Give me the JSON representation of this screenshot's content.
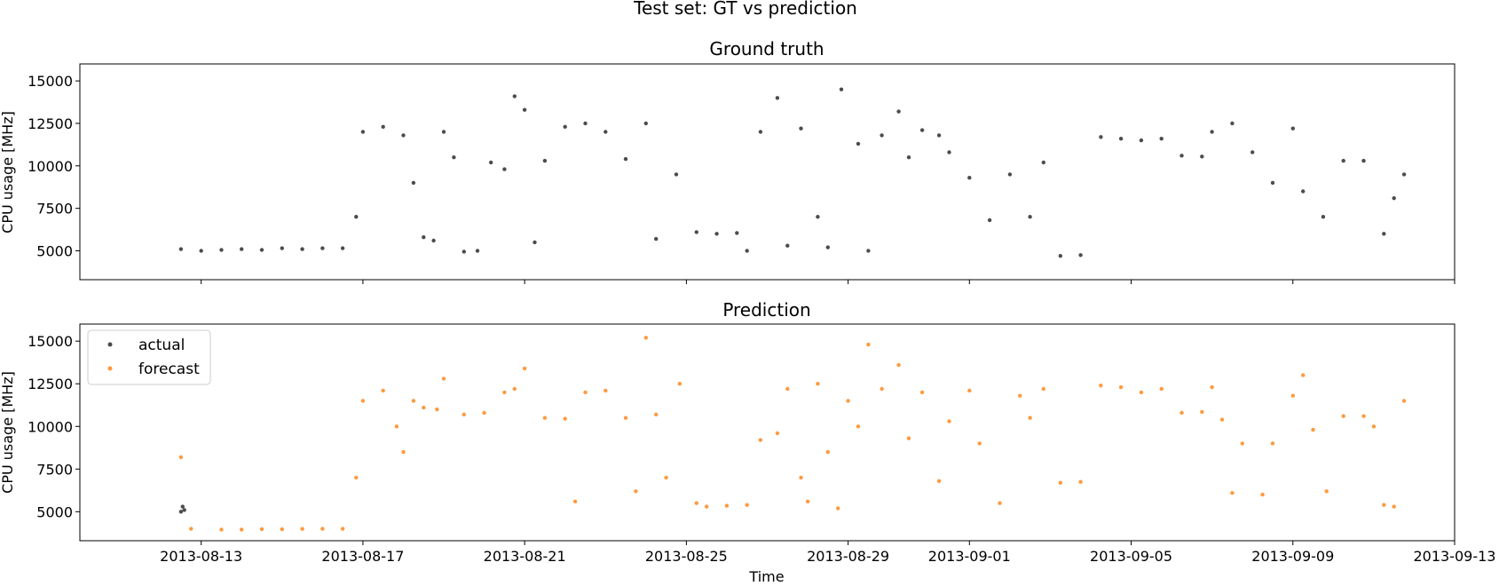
{
  "figure": {
    "suptitle": "Test set: GT vs prediction"
  },
  "chart_data": [
    {
      "type": "scatter",
      "title": "Ground truth",
      "xlabel": "",
      "ylabel": "CPU usage [MHz]",
      "ylim": [
        3300,
        16000
      ],
      "xlim": [
        "2013-08-10",
        "2013-09-13"
      ],
      "yticks": [
        5000,
        7500,
        10000,
        12500,
        15000
      ],
      "yticklabels": [
        "5000",
        "7500",
        "10000",
        "12500",
        "15000"
      ],
      "legend": null,
      "grid": false,
      "series": [
        {
          "name": "",
          "color": "#000000",
          "points": [
            [
              "2013-08-12T12:00",
              5100
            ],
            [
              "2013-08-13T00:00",
              5000
            ],
            [
              "2013-08-13T12:00",
              5050
            ],
            [
              "2013-08-14T00:00",
              5100
            ],
            [
              "2013-08-14T12:00",
              5050
            ],
            [
              "2013-08-15T00:00",
              5150
            ],
            [
              "2013-08-15T12:00",
              5100
            ],
            [
              "2013-08-16T00:00",
              5150
            ],
            [
              "2013-08-16T12:00",
              5150
            ],
            [
              "2013-08-16T20:00",
              7000
            ],
            [
              "2013-08-17T00:00",
              12000
            ],
            [
              "2013-08-17T12:00",
              12300
            ],
            [
              "2013-08-18T00:00",
              11800
            ],
            [
              "2013-08-18T06:00",
              9000
            ],
            [
              "2013-08-18T12:00",
              5800
            ],
            [
              "2013-08-18T18:00",
              5600
            ],
            [
              "2013-08-19T00:00",
              12000
            ],
            [
              "2013-08-19T06:00",
              10500
            ],
            [
              "2013-08-19T12:00",
              4950
            ],
            [
              "2013-08-19T20:00",
              5000
            ],
            [
              "2013-08-20T04:00",
              10200
            ],
            [
              "2013-08-20T12:00",
              9800
            ],
            [
              "2013-08-20T18:00",
              14100
            ],
            [
              "2013-08-21T00:00",
              13300
            ],
            [
              "2013-08-21T06:00",
              5500
            ],
            [
              "2013-08-21T12:00",
              10300
            ],
            [
              "2013-08-22T00:00",
              12300
            ],
            [
              "2013-08-22T12:00",
              12500
            ],
            [
              "2013-08-23T00:00",
              12000
            ],
            [
              "2013-08-23T12:00",
              10400
            ],
            [
              "2013-08-24T00:00",
              12500
            ],
            [
              "2013-08-24T06:00",
              5700
            ],
            [
              "2013-08-24T18:00",
              9500
            ],
            [
              "2013-08-25T06:00",
              6100
            ],
            [
              "2013-08-25T18:00",
              6000
            ],
            [
              "2013-08-26T06:00",
              6050
            ],
            [
              "2013-08-26T12:00",
              5000
            ],
            [
              "2013-08-26T20:00",
              12000
            ],
            [
              "2013-08-27T06:00",
              14000
            ],
            [
              "2013-08-27T12:00",
              5300
            ],
            [
              "2013-08-27T20:00",
              12200
            ],
            [
              "2013-08-28T06:00",
              7000
            ],
            [
              "2013-08-28T12:00",
              5200
            ],
            [
              "2013-08-28T20:00",
              14500
            ],
            [
              "2013-08-29T06:00",
              11300
            ],
            [
              "2013-08-29T12:00",
              5000
            ],
            [
              "2013-08-29T20:00",
              11800
            ],
            [
              "2013-08-30T06:00",
              13200
            ],
            [
              "2013-08-30T12:00",
              10500
            ],
            [
              "2013-08-30T20:00",
              12100
            ],
            [
              "2013-08-31T06:00",
              11800
            ],
            [
              "2013-08-31T12:00",
              10800
            ],
            [
              "2013-09-01T00:00",
              9300
            ],
            [
              "2013-09-01T12:00",
              6800
            ],
            [
              "2013-09-02T00:00",
              9500
            ],
            [
              "2013-09-02T12:00",
              7000
            ],
            [
              "2013-09-02T20:00",
              10200
            ],
            [
              "2013-09-03T06:00",
              4700
            ],
            [
              "2013-09-03T18:00",
              4750
            ],
            [
              "2013-09-04T06:00",
              11700
            ],
            [
              "2013-09-04T18:00",
              11600
            ],
            [
              "2013-09-05T06:00",
              11500
            ],
            [
              "2013-09-05T18:00",
              11600
            ],
            [
              "2013-09-06T06:00",
              10600
            ],
            [
              "2013-09-06T18:00",
              10550
            ],
            [
              "2013-09-07T00:00",
              12000
            ],
            [
              "2013-09-07T12:00",
              12500
            ],
            [
              "2013-09-08T00:00",
              10800
            ],
            [
              "2013-09-08T12:00",
              9000
            ],
            [
              "2013-09-09T00:00",
              12200
            ],
            [
              "2013-09-09T06:00",
              8500
            ],
            [
              "2013-09-09T18:00",
              7000
            ],
            [
              "2013-09-10T06:00",
              10300
            ],
            [
              "2013-09-10T18:00",
              10300
            ],
            [
              "2013-09-11T06:00",
              6000
            ],
            [
              "2013-09-11T12:00",
              8100
            ],
            [
              "2013-09-11T18:00",
              9500
            ]
          ]
        }
      ]
    },
    {
      "type": "scatter",
      "title": "Prediction",
      "xlabel": "Time",
      "ylabel": "CPU usage [MHz]",
      "ylim": [
        3300,
        16000
      ],
      "xlim": [
        "2013-08-10",
        "2013-09-13"
      ],
      "yticks": [
        5000,
        7500,
        10000,
        12500,
        15000
      ],
      "yticklabels": [
        "5000",
        "7500",
        "10000",
        "12500",
        "15000"
      ],
      "xticks": [
        "2013-08-13",
        "2013-08-17",
        "2013-08-21",
        "2013-08-25",
        "2013-08-29",
        "2013-09-01",
        "2013-09-05",
        "2013-09-09",
        "2013-09-13"
      ],
      "xticklabels": [
        "2013-08-13",
        "2013-08-17",
        "2013-08-21",
        "2013-08-25",
        "2013-08-29",
        "2013-09-01",
        "2013-09-05",
        "2013-09-09",
        "2013-09-13"
      ],
      "legend": "top-left",
      "grid": false,
      "series": [
        {
          "name": "actual",
          "color": "#000000",
          "points": [
            [
              "2013-08-12T12:00",
              5000
            ],
            [
              "2013-08-12T13:00",
              5300
            ],
            [
              "2013-08-12T14:00",
              5100
            ]
          ]
        },
        {
          "name": "forecast",
          "color": "#ff7f0e",
          "points": [
            [
              "2013-08-12T12:00",
              8200
            ],
            [
              "2013-08-12T18:00",
              4000
            ],
            [
              "2013-08-13T12:00",
              3950
            ],
            [
              "2013-08-14T00:00",
              3950
            ],
            [
              "2013-08-14T12:00",
              3980
            ],
            [
              "2013-08-15T00:00",
              3970
            ],
            [
              "2013-08-15T12:00",
              3990
            ],
            [
              "2013-08-16T00:00",
              4000
            ],
            [
              "2013-08-16T12:00",
              4000
            ],
            [
              "2013-08-16T20:00",
              7000
            ],
            [
              "2013-08-17T00:00",
              11500
            ],
            [
              "2013-08-17T12:00",
              12100
            ],
            [
              "2013-08-17T20:00",
              10000
            ],
            [
              "2013-08-18T00:00",
              8500
            ],
            [
              "2013-08-18T06:00",
              11500
            ],
            [
              "2013-08-18T12:00",
              11100
            ],
            [
              "2013-08-18T20:00",
              11000
            ],
            [
              "2013-08-19T00:00",
              12800
            ],
            [
              "2013-08-19T12:00",
              10700
            ],
            [
              "2013-08-20T00:00",
              10800
            ],
            [
              "2013-08-20T12:00",
              12000
            ],
            [
              "2013-08-20T18:00",
              12200
            ],
            [
              "2013-08-21T00:00",
              13400
            ],
            [
              "2013-08-21T12:00",
              10500
            ],
            [
              "2013-08-22T00:00",
              10450
            ],
            [
              "2013-08-22T06:00",
              5600
            ],
            [
              "2013-08-22T12:00",
              12000
            ],
            [
              "2013-08-23T00:00",
              12100
            ],
            [
              "2013-08-23T12:00",
              10500
            ],
            [
              "2013-08-23T18:00",
              6200
            ],
            [
              "2013-08-24T00:00",
              15200
            ],
            [
              "2013-08-24T06:00",
              10700
            ],
            [
              "2013-08-24T12:00",
              7000
            ],
            [
              "2013-08-24T20:00",
              12500
            ],
            [
              "2013-08-25T06:00",
              5500
            ],
            [
              "2013-08-25T12:00",
              5300
            ],
            [
              "2013-08-26T00:00",
              5350
            ],
            [
              "2013-08-26T12:00",
              5400
            ],
            [
              "2013-08-26T20:00",
              9200
            ],
            [
              "2013-08-27T06:00",
              9600
            ],
            [
              "2013-08-27T12:00",
              12200
            ],
            [
              "2013-08-27T20:00",
              7000
            ],
            [
              "2013-08-28T00:00",
              5600
            ],
            [
              "2013-08-28T06:00",
              12500
            ],
            [
              "2013-08-28T12:00",
              8500
            ],
            [
              "2013-08-28T18:00",
              5200
            ],
            [
              "2013-08-29T00:00",
              11500
            ],
            [
              "2013-08-29T06:00",
              10000
            ],
            [
              "2013-08-29T12:00",
              14800
            ],
            [
              "2013-08-29T20:00",
              12200
            ],
            [
              "2013-08-30T06:00",
              13600
            ],
            [
              "2013-08-30T12:00",
              9300
            ],
            [
              "2013-08-30T20:00",
              12000
            ],
            [
              "2013-08-31T06:00",
              6800
            ],
            [
              "2013-08-31T12:00",
              10300
            ],
            [
              "2013-09-01T00:00",
              12100
            ],
            [
              "2013-09-01T06:00",
              9000
            ],
            [
              "2013-09-01T18:00",
              5500
            ],
            [
              "2013-09-02T06:00",
              11800
            ],
            [
              "2013-09-02T12:00",
              10500
            ],
            [
              "2013-09-02T20:00",
              12200
            ],
            [
              "2013-09-03T06:00",
              6700
            ],
            [
              "2013-09-03T18:00",
              6750
            ],
            [
              "2013-09-04T06:00",
              12400
            ],
            [
              "2013-09-04T18:00",
              12300
            ],
            [
              "2013-09-05T06:00",
              12000
            ],
            [
              "2013-09-05T18:00",
              12200
            ],
            [
              "2013-09-06T06:00",
              10800
            ],
            [
              "2013-09-06T18:00",
              10850
            ],
            [
              "2013-09-07T00:00",
              12300
            ],
            [
              "2013-09-07T06:00",
              10400
            ],
            [
              "2013-09-07T12:00",
              6100
            ],
            [
              "2013-09-07T18:00",
              9000
            ],
            [
              "2013-09-08T06:00",
              6000
            ],
            [
              "2013-09-08T12:00",
              9000
            ],
            [
              "2013-09-09T00:00",
              11800
            ],
            [
              "2013-09-09T06:00",
              13000
            ],
            [
              "2013-09-09T12:00",
              9800
            ],
            [
              "2013-09-09T20:00",
              6200
            ],
            [
              "2013-09-10T06:00",
              10600
            ],
            [
              "2013-09-10T18:00",
              10600
            ],
            [
              "2013-09-11T00:00",
              10000
            ],
            [
              "2013-09-11T06:00",
              5400
            ],
            [
              "2013-09-11T12:00",
              5300
            ],
            [
              "2013-09-11T18:00",
              11500
            ]
          ]
        }
      ]
    }
  ]
}
